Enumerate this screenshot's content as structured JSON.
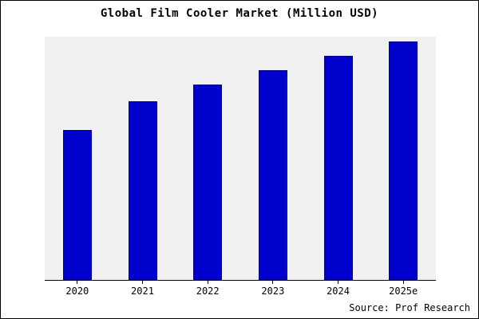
{
  "title": "Global Film Cooler Market (Million USD)",
  "source": "Source: Prof Research",
  "colors": {
    "bar_fill": "#0000cd",
    "bar_border": "#00008b",
    "plot_bg": "#f1f1f1",
    "frame": "#000000"
  },
  "chart_data": {
    "type": "bar",
    "title": "Global Film Cooler Market (Million USD)",
    "categories": [
      "2020",
      "2021",
      "2022",
      "2023",
      "2024",
      "2025e"
    ],
    "values": [
      63,
      75,
      82,
      88,
      94,
      100
    ],
    "xlabel": "",
    "ylabel": "",
    "ylim": [
      0,
      102
    ],
    "grid": false,
    "legend": false,
    "note": "No y-axis tick labels shown; values are relative units estimated from bar heights (2025e = 100)",
    "annotations": [
      "Source: Prof Research"
    ]
  }
}
